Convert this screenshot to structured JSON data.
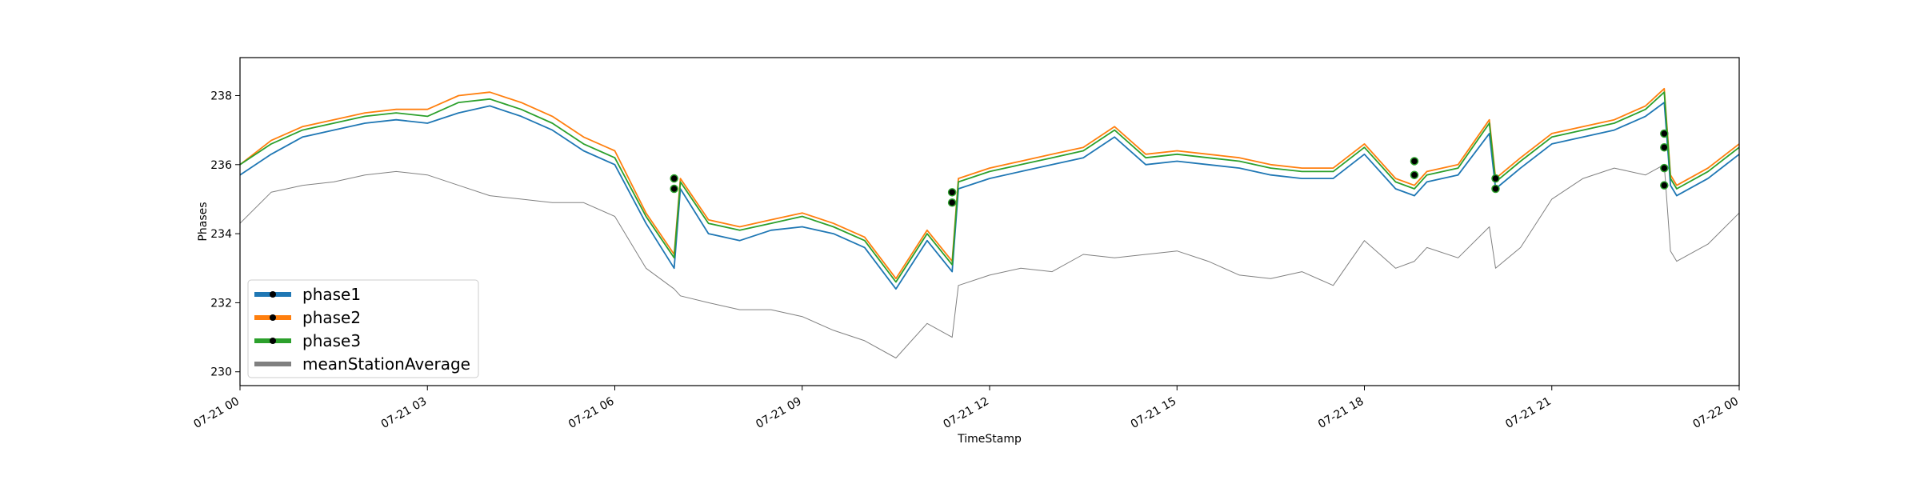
{
  "chart_data": {
    "type": "line",
    "title": "",
    "xlabel": "TimeStamp",
    "ylabel": "Phases",
    "xlim": [
      "07-21 00",
      "07-22 00"
    ],
    "ylim": [
      229.6,
      239.1
    ],
    "x_ticks": [
      "07-21 00",
      "07-21 03",
      "07-21 06",
      "07-21 09",
      "07-21 12",
      "07-21 15",
      "07-21 18",
      "07-21 21",
      "07-22 00"
    ],
    "y_ticks": [
      "230",
      "232",
      "234",
      "236",
      "238"
    ],
    "y_tick_values": [
      230,
      232,
      234,
      236,
      238
    ],
    "grid": false,
    "legend_position": "lower-left",
    "x_hours": [
      0,
      0.5,
      1,
      1.5,
      2,
      2.5,
      3,
      3.5,
      4,
      4.5,
      5,
      5.5,
      6,
      6.5,
      6.95,
      7.05,
      7.5,
      8,
      8.5,
      9,
      9.5,
      10,
      10.5,
      11,
      11.4,
      11.5,
      12,
      12.5,
      13,
      13.5,
      14,
      14.5,
      15,
      15.5,
      16,
      16.5,
      17,
      17.5,
      18,
      18.5,
      18.8,
      19,
      19.5,
      20,
      20.1,
      20.5,
      21,
      21.5,
      22,
      22.5,
      22.8,
      22.9,
      23,
      23.5,
      24
    ],
    "series": [
      {
        "name": "phase1",
        "color": "#1f77b4",
        "values": [
          235.7,
          236.3,
          236.8,
          237.0,
          237.2,
          237.3,
          237.2,
          237.5,
          237.7,
          237.4,
          237.0,
          236.4,
          236.0,
          234.3,
          233.0,
          235.3,
          234.0,
          233.8,
          234.1,
          234.2,
          234.0,
          233.6,
          232.4,
          233.8,
          232.9,
          235.3,
          235.6,
          235.8,
          236.0,
          236.2,
          236.8,
          236.0,
          236.1,
          236.0,
          235.9,
          235.7,
          235.6,
          235.6,
          236.3,
          235.3,
          235.1,
          235.5,
          235.7,
          236.9,
          235.3,
          235.9,
          236.6,
          236.8,
          237.0,
          237.4,
          237.8,
          235.4,
          235.1,
          235.6,
          236.3
        ]
      },
      {
        "name": "phase2",
        "color": "#ff7f0e",
        "values": [
          236.0,
          236.7,
          237.1,
          237.3,
          237.5,
          237.6,
          237.6,
          238.0,
          238.1,
          237.8,
          237.4,
          236.8,
          236.4,
          234.6,
          233.4,
          235.6,
          234.4,
          234.2,
          234.4,
          234.6,
          234.3,
          233.9,
          232.7,
          234.1,
          233.2,
          235.6,
          235.9,
          236.1,
          236.3,
          236.5,
          237.1,
          236.3,
          236.4,
          236.3,
          236.2,
          236.0,
          235.9,
          235.9,
          236.6,
          235.6,
          235.4,
          235.8,
          236.0,
          237.3,
          235.6,
          236.2,
          236.9,
          237.1,
          237.3,
          237.7,
          238.2,
          235.7,
          235.4,
          235.9,
          236.6
        ]
      },
      {
        "name": "phase3",
        "color": "#2ca02c",
        "values": [
          236.0,
          236.6,
          237.0,
          237.2,
          237.4,
          237.5,
          237.4,
          237.8,
          237.9,
          237.6,
          237.2,
          236.6,
          236.2,
          234.5,
          233.3,
          235.5,
          234.3,
          234.1,
          234.3,
          234.5,
          234.2,
          233.8,
          232.6,
          234.0,
          233.1,
          235.5,
          235.8,
          236.0,
          236.2,
          236.4,
          237.0,
          236.2,
          236.3,
          236.2,
          236.1,
          235.9,
          235.8,
          235.8,
          236.5,
          235.5,
          235.3,
          235.7,
          235.9,
          237.2,
          235.5,
          236.1,
          236.8,
          237.0,
          237.2,
          237.6,
          238.1,
          235.6,
          235.3,
          235.8,
          236.5
        ]
      },
      {
        "name": "meanStationAverage",
        "color": "#808080",
        "values": [
          234.3,
          235.2,
          235.4,
          235.5,
          235.7,
          235.8,
          235.7,
          235.4,
          235.1,
          235.0,
          234.9,
          234.9,
          234.5,
          233.0,
          232.4,
          232.2,
          232.0,
          231.8,
          231.8,
          231.6,
          231.2,
          230.9,
          230.4,
          231.4,
          231.0,
          232.5,
          232.8,
          233.0,
          232.9,
          233.4,
          233.3,
          233.4,
          233.5,
          233.2,
          232.8,
          232.7,
          232.9,
          232.5,
          233.8,
          233.0,
          233.2,
          233.6,
          233.3,
          234.2,
          233.0,
          233.6,
          235.0,
          235.6,
          235.9,
          235.7,
          236.0,
          233.5,
          233.2,
          233.7,
          234.6
        ]
      }
    ],
    "markers": [
      {
        "x": 6.95,
        "y": 235.3
      },
      {
        "x": 6.95,
        "y": 235.6
      },
      {
        "x": 11.4,
        "y": 234.9
      },
      {
        "x": 11.4,
        "y": 235.2
      },
      {
        "x": 18.8,
        "y": 235.7
      },
      {
        "x": 18.8,
        "y": 236.1
      },
      {
        "x": 20.1,
        "y": 235.3
      },
      {
        "x": 20.1,
        "y": 235.6
      },
      {
        "x": 22.8,
        "y": 235.4
      },
      {
        "x": 22.8,
        "y": 235.9
      },
      {
        "x": 22.8,
        "y": 236.5
      },
      {
        "x": 22.8,
        "y": 236.9
      }
    ]
  }
}
